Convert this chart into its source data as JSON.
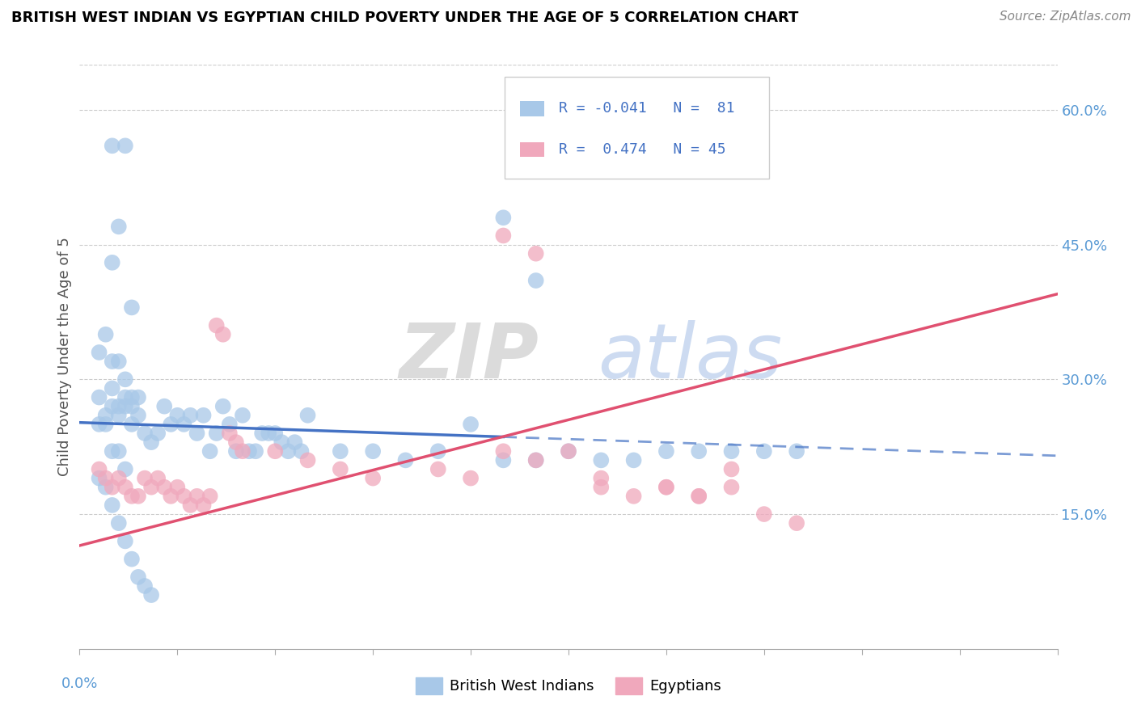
{
  "title": "BRITISH WEST INDIAN VS EGYPTIAN CHILD POVERTY UNDER THE AGE OF 5 CORRELATION CHART",
  "source": "Source: ZipAtlas.com",
  "ylabel": "Child Poverty Under the Age of 5",
  "x_min": 0.0,
  "x_max": 0.15,
  "y_min": 0.0,
  "y_max": 0.65,
  "legend_label1": "British West Indians",
  "legend_label2": "Egyptians",
  "color_bwi": "#a8c8e8",
  "color_egy": "#f0a8bc",
  "color_bwi_line": "#4472c4",
  "color_egy_line": "#e05070",
  "watermark_zip": "ZIP",
  "watermark_atlas": "atlas",
  "bwi_trend_x": [
    0.0,
    0.15
  ],
  "bwi_trend_y": [
    0.252,
    0.215
  ],
  "egy_trend_x": [
    0.0,
    0.15
  ],
  "egy_trend_y": [
    0.115,
    0.395
  ],
  "bwi_points_x": [
    0.005,
    0.007,
    0.005,
    0.006,
    0.008,
    0.004,
    0.003,
    0.005,
    0.006,
    0.007,
    0.008,
    0.009,
    0.004,
    0.003,
    0.006,
    0.005,
    0.007,
    0.008,
    0.004,
    0.003,
    0.005,
    0.006,
    0.007,
    0.008,
    0.009,
    0.01,
    0.011,
    0.012,
    0.013,
    0.014,
    0.015,
    0.016,
    0.017,
    0.018,
    0.019,
    0.02,
    0.021,
    0.022,
    0.023,
    0.024,
    0.025,
    0.026,
    0.027,
    0.028,
    0.029,
    0.03,
    0.031,
    0.032,
    0.033,
    0.034,
    0.035,
    0.04,
    0.045,
    0.05,
    0.055,
    0.06,
    0.065,
    0.07,
    0.075,
    0.08,
    0.085,
    0.09,
    0.095,
    0.1,
    0.105,
    0.11,
    0.065,
    0.07,
    0.005,
    0.006,
    0.007,
    0.003,
    0.004,
    0.005,
    0.006,
    0.007,
    0.008,
    0.009,
    0.01,
    0.011
  ],
  "bwi_points_y": [
    0.56,
    0.56,
    0.43,
    0.47,
    0.38,
    0.35,
    0.33,
    0.32,
    0.32,
    0.3,
    0.28,
    0.26,
    0.26,
    0.28,
    0.27,
    0.29,
    0.28,
    0.27,
    0.25,
    0.25,
    0.27,
    0.26,
    0.27,
    0.25,
    0.28,
    0.24,
    0.23,
    0.24,
    0.27,
    0.25,
    0.26,
    0.25,
    0.26,
    0.24,
    0.26,
    0.22,
    0.24,
    0.27,
    0.25,
    0.22,
    0.26,
    0.22,
    0.22,
    0.24,
    0.24,
    0.24,
    0.23,
    0.22,
    0.23,
    0.22,
    0.26,
    0.22,
    0.22,
    0.21,
    0.22,
    0.25,
    0.21,
    0.21,
    0.22,
    0.21,
    0.21,
    0.22,
    0.22,
    0.22,
    0.22,
    0.22,
    0.48,
    0.41,
    0.22,
    0.22,
    0.2,
    0.19,
    0.18,
    0.16,
    0.14,
    0.12,
    0.1,
    0.08,
    0.07,
    0.06
  ],
  "egy_points_x": [
    0.003,
    0.004,
    0.005,
    0.006,
    0.007,
    0.008,
    0.009,
    0.01,
    0.011,
    0.012,
    0.013,
    0.014,
    0.015,
    0.016,
    0.017,
    0.018,
    0.019,
    0.02,
    0.021,
    0.022,
    0.023,
    0.024,
    0.025,
    0.03,
    0.035,
    0.04,
    0.045,
    0.055,
    0.06,
    0.065,
    0.07,
    0.075,
    0.08,
    0.09,
    0.095,
    0.1,
    0.105,
    0.11,
    0.065,
    0.07,
    0.08,
    0.085,
    0.09,
    0.095,
    0.1
  ],
  "egy_points_y": [
    0.2,
    0.19,
    0.18,
    0.19,
    0.18,
    0.17,
    0.17,
    0.19,
    0.18,
    0.19,
    0.18,
    0.17,
    0.18,
    0.17,
    0.16,
    0.17,
    0.16,
    0.17,
    0.36,
    0.35,
    0.24,
    0.23,
    0.22,
    0.22,
    0.21,
    0.2,
    0.19,
    0.2,
    0.19,
    0.22,
    0.21,
    0.22,
    0.19,
    0.18,
    0.17,
    0.2,
    0.15,
    0.14,
    0.46,
    0.44,
    0.18,
    0.17,
    0.18,
    0.17,
    0.18
  ]
}
